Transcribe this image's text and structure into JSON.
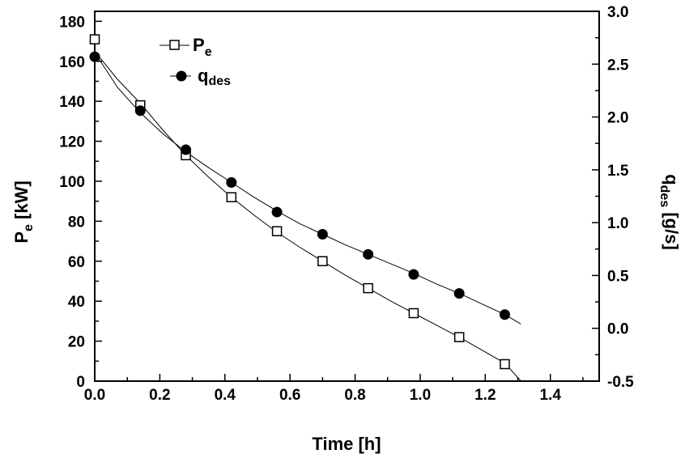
{
  "chart_data": {
    "type": "scatter",
    "xlabel": "Time [h]",
    "ylabel_left": {
      "main": "P",
      "sub": "e",
      "unit": " [kW]"
    },
    "ylabel_right": {
      "main": "q",
      "sub": "des",
      "unit": " [g/s]"
    },
    "xlim": [
      0,
      1.55
    ],
    "ylim_left": [
      0,
      185
    ],
    "ylim_right": [
      -0.5,
      3.0
    ],
    "x_ticks": [
      "0.0",
      "0.2",
      "0.4",
      "0.6",
      "0.8",
      "1.0",
      "1.2",
      "1.4"
    ],
    "y_left_ticks": [
      "0",
      "20",
      "40",
      "60",
      "80",
      "100",
      "120",
      "140",
      "160",
      "180"
    ],
    "y_right_ticks": [
      "-0.5",
      "0.0",
      "0.5",
      "1.0",
      "1.5",
      "2.0",
      "2.5",
      "3.0"
    ],
    "grid": false,
    "legend_position": "top-left",
    "series": [
      {
        "name": "P",
        "name_sub": "e",
        "axis": "left",
        "marker": "open-square",
        "x": [
          0.0,
          0.14,
          0.28,
          0.42,
          0.56,
          0.7,
          0.84,
          0.98,
          1.12,
          1.26
        ],
        "y": [
          171,
          138,
          113,
          92,
          75,
          60,
          46.5,
          34,
          22,
          8.5
        ],
        "fit_x": [
          0.0,
          0.07,
          0.14,
          0.21,
          0.28,
          0.35,
          0.42,
          0.49,
          0.56,
          0.63,
          0.7,
          0.77,
          0.84,
          0.91,
          0.98,
          1.05,
          1.12,
          1.19,
          1.26,
          1.31
        ],
        "fit_y": [
          165,
          151,
          139,
          125.5,
          113,
          102,
          92,
          83,
          74.5,
          67,
          60,
          53,
          46.5,
          40,
          34,
          28,
          22,
          15.5,
          9,
          0
        ]
      },
      {
        "name": "q",
        "name_sub": "des",
        "axis": "right",
        "marker": "filled-circle",
        "x": [
          0.0,
          0.14,
          0.28,
          0.42,
          0.56,
          0.7,
          0.84,
          0.98,
          1.12,
          1.26
        ],
        "y": [
          2.57,
          2.06,
          1.69,
          1.38,
          1.1,
          0.89,
          0.7,
          0.51,
          0.33,
          0.13
        ],
        "fit_x": [
          0.0,
          0.07,
          0.14,
          0.21,
          0.28,
          0.35,
          0.42,
          0.49,
          0.56,
          0.63,
          0.7,
          0.77,
          0.84,
          0.91,
          0.98,
          1.05,
          1.12,
          1.19,
          1.26,
          1.31
        ],
        "fit_y": [
          2.61,
          2.28,
          2.04,
          1.84,
          1.67,
          1.52,
          1.38,
          1.24,
          1.11,
          0.99,
          0.89,
          0.79,
          0.7,
          0.61,
          0.52,
          0.42,
          0.33,
          0.23,
          0.13,
          0.04
        ]
      }
    ]
  }
}
